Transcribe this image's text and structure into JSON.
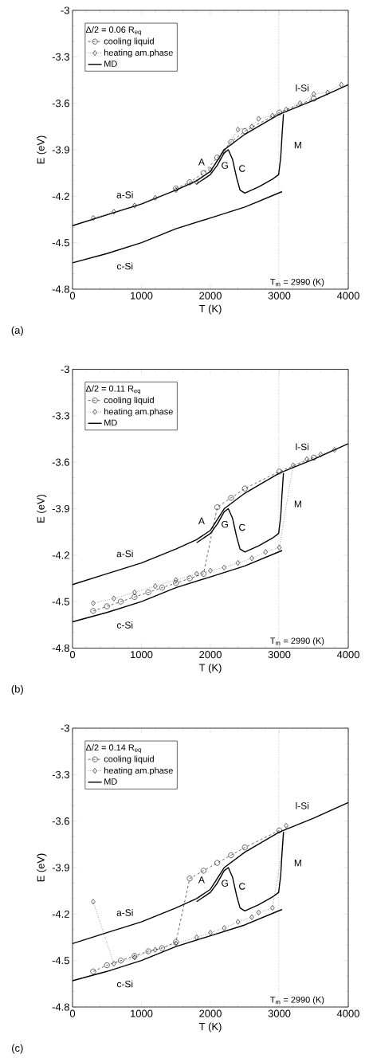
{
  "chart_data": [
    {
      "type": "line",
      "legend_title": "Δ/2 = 0.06 R$_{eq}$",
      "xlabel": "T (K)",
      "ylabel": "E (eV)",
      "xlim": [
        0,
        4000
      ],
      "ylim": [
        -4.8,
        -3
      ],
      "xticks": [
        0,
        1000,
        2000,
        3000,
        4000
      ],
      "yticks": [
        -4.8,
        -4.5,
        -4.2,
        -3.9,
        -3.6,
        -3.3,
        -3
      ],
      "legend": "top left",
      "series": [
        {
          "name": "cooling liquid",
          "color": "#000000",
          "marker": "circle",
          "line_style": "dashed",
          "x": [
            1500,
            1700,
            1900,
            2100,
            2300,
            2500,
            3000,
            3500
          ],
          "values": [
            -4.15,
            -4.11,
            -4.05,
            -3.95,
            -3.85,
            -3.78,
            -3.66,
            -3.57
          ]
        },
        {
          "name": "heating am.phase",
          "color": "#000000",
          "marker": "diamond",
          "line_style": "dotted",
          "x": [
            300,
            600,
            900,
            1200,
            1500,
            1800,
            2000,
            2200,
            2400,
            2600,
            2700,
            2900,
            3100,
            3300,
            3500,
            3700,
            3900
          ],
          "values": [
            -4.34,
            -4.3,
            -4.26,
            -4.21,
            -4.16,
            -4.11,
            -4.03,
            -3.91,
            -3.77,
            -3.75,
            -3.7,
            -3.68,
            -3.64,
            -3.6,
            -3.54,
            -3.53,
            -3.48
          ]
        },
        {
          "name": "MD",
          "color": "#000000",
          "marker": "none",
          "line_style": "solid",
          "x": [
            0,
            500,
            1000,
            1500,
            1800,
            2000,
            2100,
            2200,
            2500,
            3000,
            3500,
            4000
          ],
          "values": [
            -4.39,
            -4.32,
            -4.25,
            -4.16,
            -4.1,
            -4.04,
            -3.97,
            -3.9,
            -3.8,
            -3.67,
            -3.58,
            -3.48
          ]
        },
        {
          "color": "#000000",
          "marker": "none",
          "line_style": "solid",
          "x": [
            1800,
            2000,
            2100,
            2200,
            2260,
            2320,
            2380,
            2430,
            2500,
            2700,
            2900,
            2990,
            3020,
            3040,
            3060
          ],
          "values": [
            -4.12,
            -4.06,
            -4.0,
            -3.92,
            -3.9,
            -3.96,
            -4.08,
            -4.16,
            -4.18,
            -4.14,
            -4.09,
            -4.06,
            -3.95,
            -3.8,
            -3.67
          ]
        },
        {
          "color": "#000000",
          "marker": "none",
          "line_style": "solid",
          "x": [
            0,
            500,
            1000,
            1500,
            2000,
            2500,
            3040
          ],
          "values": [
            -4.63,
            -4.57,
            -4.5,
            -4.41,
            -4.34,
            -4.27,
            -4.17
          ]
        }
      ],
      "ref_lines": [
        {
          "axis": "x",
          "value": 2990,
          "label": "T$_{m}$ = 2990 (K)",
          "color": "#808080",
          "line_style": "dotted"
        }
      ],
      "annotations": [
        "(a)",
        "a-Si",
        "c-Si",
        "l-Si",
        "A",
        "G",
        "C",
        "M"
      ]
    },
    {
      "type": "line",
      "legend_title": "Δ/2 = 0.11 R$_{eq}$",
      "xlabel": "T (K)",
      "ylabel": "E (eV)",
      "xlim": [
        0,
        4000
      ],
      "ylim": [
        -4.8,
        -3
      ],
      "xticks": [
        0,
        1000,
        2000,
        3000,
        4000
      ],
      "yticks": [
        -4.8,
        -4.5,
        -4.2,
        -3.9,
        -3.6,
        -3.3,
        -3
      ],
      "legend": "top left",
      "series": [
        {
          "name": "cooling liquid",
          "color": "#000000",
          "marker": "circle",
          "line_style": "dashed",
          "x": [
            300,
            500,
            700,
            900,
            1100,
            1300,
            1500,
            1700,
            1900,
            2100,
            2300,
            2500,
            3000,
            3500
          ],
          "values": [
            -4.56,
            -4.53,
            -4.5,
            -4.47,
            -4.44,
            -4.41,
            -4.38,
            -4.35,
            -4.32,
            -3.89,
            -3.83,
            -3.77,
            -3.66,
            -3.57
          ]
        },
        {
          "name": "heating am.phase",
          "color": "#000000",
          "marker": "diamond",
          "line_style": "dotted",
          "x": [
            300,
            600,
            900,
            1200,
            1500,
            1800,
            2000,
            2200,
            2400,
            2600,
            2800,
            3000,
            3200,
            3400,
            3600,
            3800
          ],
          "values": [
            -4.51,
            -4.48,
            -4.44,
            -4.4,
            -4.36,
            -4.32,
            -4.3,
            -4.28,
            -4.25,
            -4.22,
            -4.18,
            -4.15,
            -3.62,
            -3.58,
            -3.55,
            -3.52
          ]
        },
        {
          "name": "MD",
          "color": "#000000",
          "marker": "none",
          "line_style": "solid",
          "x": [
            0,
            500,
            1000,
            1500,
            1800,
            2000,
            2100,
            2200,
            2500,
            3000,
            3500,
            4000
          ],
          "values": [
            -4.39,
            -4.32,
            -4.25,
            -4.16,
            -4.1,
            -4.04,
            -3.97,
            -3.9,
            -3.8,
            -3.67,
            -3.58,
            -3.48
          ]
        },
        {
          "color": "#000000",
          "marker": "none",
          "line_style": "solid",
          "x": [
            1800,
            2000,
            2100,
            2200,
            2260,
            2320,
            2380,
            2430,
            2500,
            2700,
            2900,
            2990,
            3020,
            3040,
            3060
          ],
          "values": [
            -4.12,
            -4.06,
            -4.0,
            -3.92,
            -3.9,
            -3.96,
            -4.08,
            -4.16,
            -4.18,
            -4.14,
            -4.09,
            -4.06,
            -3.95,
            -3.8,
            -3.67
          ]
        },
        {
          "color": "#000000",
          "marker": "none",
          "line_style": "solid",
          "x": [
            0,
            500,
            1000,
            1500,
            2000,
            2500,
            3040
          ],
          "values": [
            -4.63,
            -4.57,
            -4.5,
            -4.41,
            -4.34,
            -4.27,
            -4.17
          ]
        }
      ],
      "ref_lines": [
        {
          "axis": "x",
          "value": 2990,
          "label": "T$_{m}$ = 2990 (K)",
          "color": "#808080",
          "line_style": "dotted"
        }
      ],
      "annotations": [
        "(b)",
        "a-Si",
        "c-Si",
        "l-Si",
        "A",
        "G",
        "C",
        "M"
      ]
    },
    {
      "type": "line",
      "legend_title": "Δ/2 = 0.14 R$_{eq}$",
      "xlabel": "T (K)",
      "ylabel": "E (eV)",
      "xlim": [
        0,
        4000
      ],
      "ylim": [
        -4.8,
        -3
      ],
      "xticks": [
        0,
        1000,
        2000,
        3000,
        4000
      ],
      "yticks": [
        -4.8,
        -4.5,
        -4.2,
        -3.9,
        -3.6,
        -3.3,
        -3
      ],
      "legend": "top left",
      "series": [
        {
          "name": "cooling liquid",
          "color": "#000000",
          "marker": "circle",
          "line_style": "dashed",
          "x": [
            300,
            500,
            700,
            900,
            1100,
            1300,
            1500,
            1700,
            1900,
            2100,
            2300,
            2500,
            3000
          ],
          "values": [
            -4.57,
            -4.53,
            -4.5,
            -4.47,
            -4.44,
            -4.42,
            -4.38,
            -3.97,
            -3.92,
            -3.87,
            -3.82,
            -3.77,
            -3.66
          ]
        },
        {
          "name": "heating am.phase",
          "color": "#000000",
          "marker": "diamond",
          "line_style": "dotted",
          "x": [
            300,
            600,
            900,
            1200,
            1500,
            1800,
            2000,
            2200,
            2400,
            2600,
            2700,
            2900,
            3100
          ],
          "values": [
            -4.12,
            -4.52,
            -4.48,
            -4.43,
            -4.39,
            -4.35,
            -4.32,
            -4.29,
            -4.25,
            -4.22,
            -4.19,
            -4.16,
            -3.63
          ]
        },
        {
          "name": "MD",
          "color": "#000000",
          "marker": "none",
          "line_style": "solid",
          "x": [
            0,
            500,
            1000,
            1500,
            1800,
            2000,
            2100,
            2200,
            2500,
            3000,
            3500,
            4000
          ],
          "values": [
            -4.39,
            -4.32,
            -4.25,
            -4.16,
            -4.1,
            -4.04,
            -3.97,
            -3.9,
            -3.8,
            -3.67,
            -3.58,
            -3.48
          ]
        },
        {
          "color": "#000000",
          "marker": "none",
          "line_style": "solid",
          "x": [
            1800,
            2000,
            2100,
            2200,
            2260,
            2320,
            2380,
            2430,
            2500,
            2700,
            2900,
            2990,
            3020,
            3040,
            3060
          ],
          "values": [
            -4.12,
            -4.06,
            -4.0,
            -3.92,
            -3.9,
            -3.96,
            -4.08,
            -4.16,
            -4.18,
            -4.14,
            -4.09,
            -4.06,
            -3.95,
            -3.8,
            -3.67
          ]
        },
        {
          "color": "#000000",
          "marker": "none",
          "line_style": "solid",
          "x": [
            0,
            500,
            1000,
            1500,
            2000,
            2500,
            3040
          ],
          "values": [
            -4.63,
            -4.57,
            -4.5,
            -4.41,
            -4.34,
            -4.27,
            -4.17
          ]
        }
      ],
      "ref_lines": [
        {
          "axis": "x",
          "value": 2990,
          "label": "T$_{m}$ = 2990 (K)",
          "color": "#808080",
          "line_style": "dotted"
        }
      ],
      "annotations": [
        "(c)",
        "a-Si",
        "c-Si",
        "l-Si",
        "A",
        "G",
        "C",
        "M"
      ]
    }
  ]
}
